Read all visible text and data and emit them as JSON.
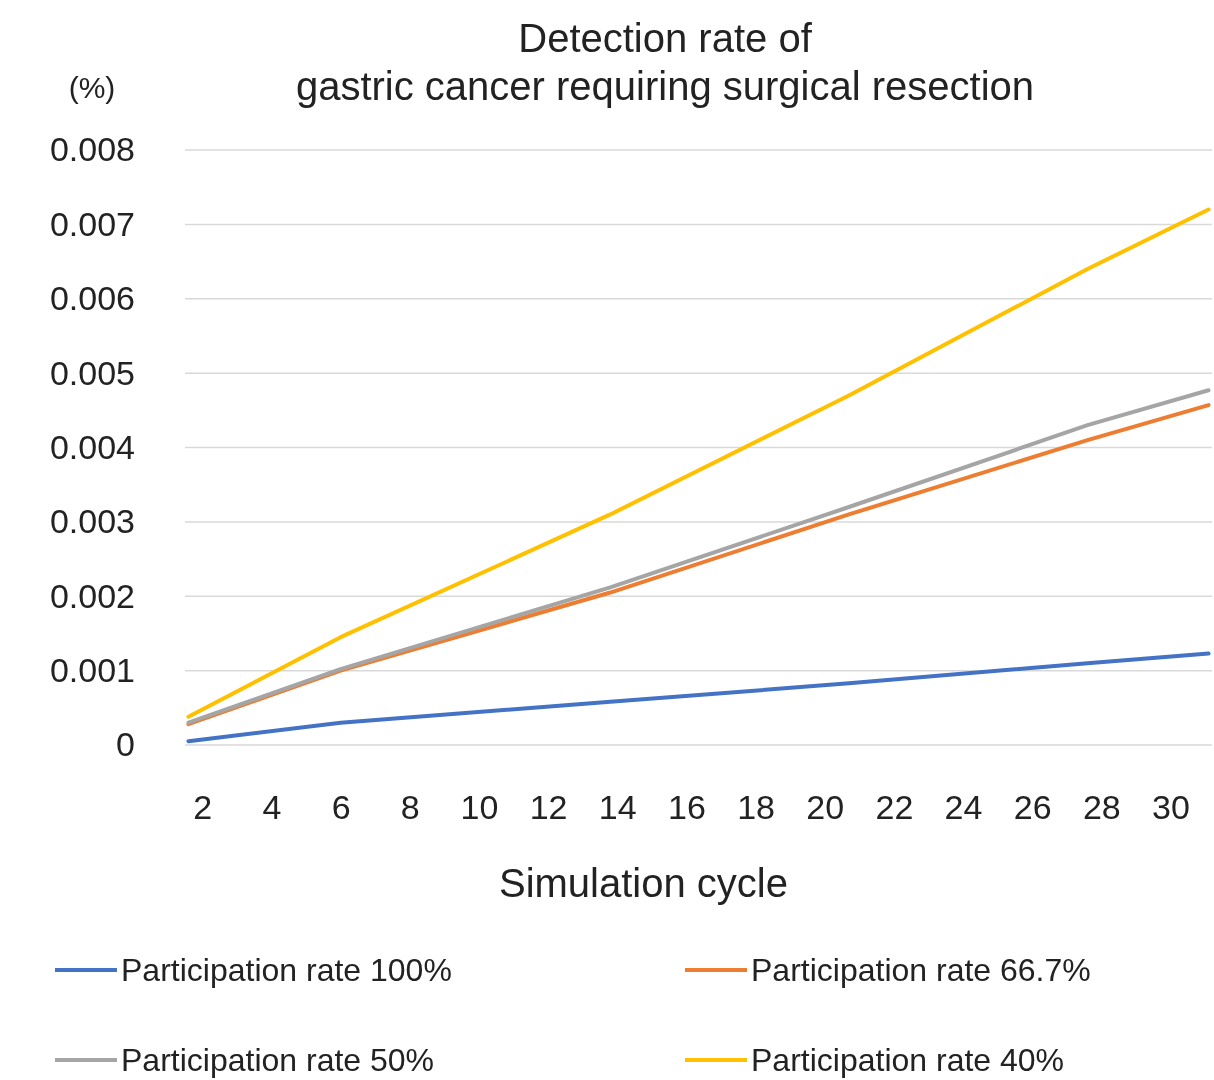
{
  "chart_data": {
    "type": "line",
    "title": "Detection rate of\ngastric cancer requiring surgical resection",
    "ylabel": "(%)",
    "xlabel": "Simulation cycle",
    "xlim": [
      1.5,
      31.2
    ],
    "xticks": [
      2,
      4,
      6,
      8,
      10,
      12,
      14,
      16,
      18,
      20,
      22,
      24,
      26,
      28,
      30
    ],
    "ylim": [
      0,
      0.008
    ],
    "yticks": [
      0,
      0.001,
      0.002,
      0.003,
      0.004,
      0.005,
      0.006,
      0.007,
      0.008
    ],
    "grid": "y",
    "legend": "bottom",
    "marker": "none",
    "line_style": "solid",
    "x": [
      1.6,
      6,
      13.8,
      20.7,
      27.6,
      31.1
    ],
    "series": [
      {
        "name": "Participation rate 100%",
        "color": "#4472c4",
        "values": [
          5e-05,
          0.0003,
          0.00058,
          0.00083,
          0.0011,
          0.00123
        ]
      },
      {
        "name": "Participation rate 66.7%",
        "color": "#ed7d31",
        "values": [
          0.00028,
          0.001,
          0.00205,
          0.0031,
          0.0041,
          0.00457
        ]
      },
      {
        "name": "Participation rate 50%",
        "color": "#a5a5a5",
        "values": [
          0.0003,
          0.00102,
          0.00212,
          0.0032,
          0.0043,
          0.00477
        ]
      },
      {
        "name": "Participation rate 40%",
        "color": "#ffc000",
        "values": [
          0.00038,
          0.00145,
          0.0031,
          0.0047,
          0.0064,
          0.0072
        ]
      }
    ]
  }
}
